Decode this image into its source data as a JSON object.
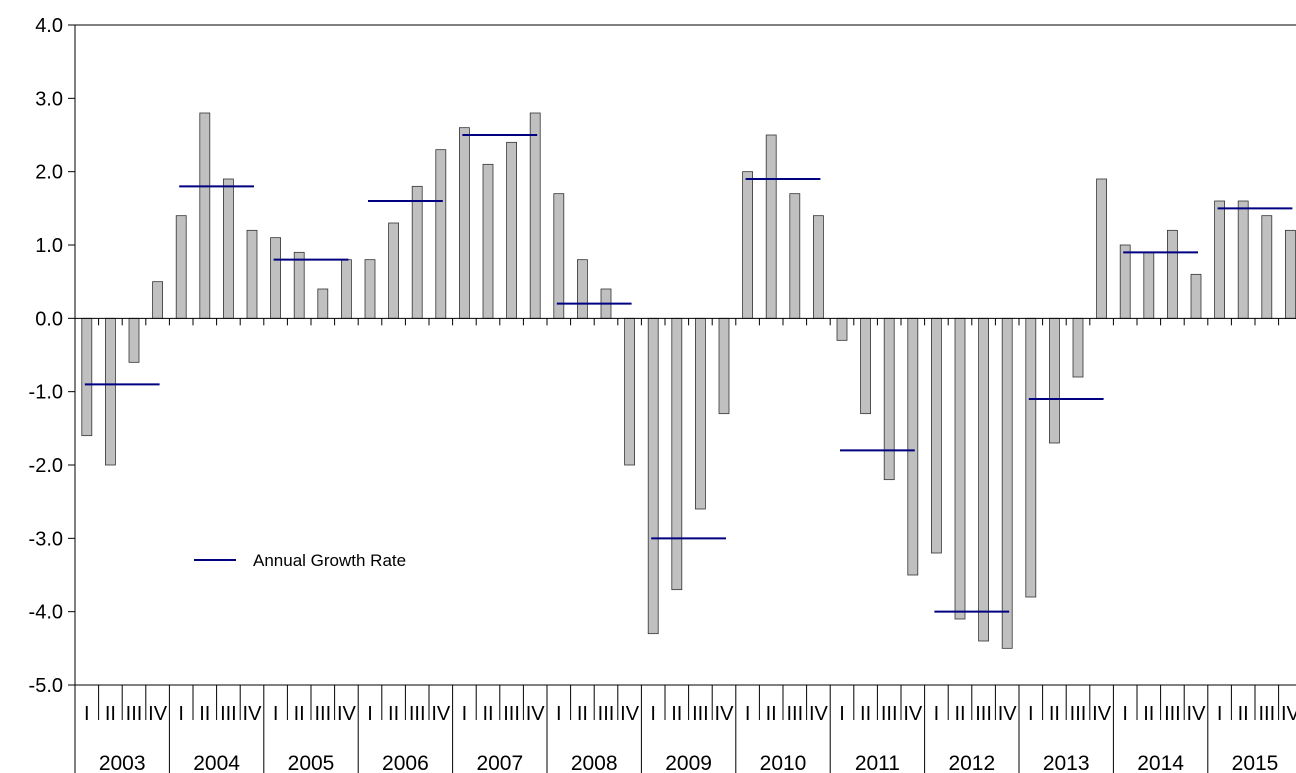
{
  "chart_data": {
    "type": "bar",
    "title": "",
    "xlabel": "",
    "ylabel": "",
    "ylim": [
      -5.0,
      4.0
    ],
    "yticks": [
      "-5.0",
      "-4.0",
      "-3.0",
      "-2.0",
      "-1.0",
      "0.0",
      "1.0",
      "2.0",
      "3.0",
      "4.0"
    ],
    "grid": false,
    "quarter_labels": [
      "I",
      "II",
      "III",
      "IV"
    ],
    "years": [
      "2003",
      "2004",
      "2005",
      "2006",
      "2007",
      "2008",
      "2009",
      "2010",
      "2011",
      "2012",
      "2013",
      "2014",
      "2015"
    ],
    "series": [
      {
        "type": "bar",
        "color": "#c0c0c0",
        "values": [
          -1.6,
          -2.0,
          -0.6,
          0.5,
          1.4,
          2.8,
          1.9,
          1.2,
          1.1,
          0.9,
          0.4,
          0.8,
          0.8,
          1.3,
          1.8,
          2.3,
          2.6,
          2.1,
          2.4,
          2.8,
          1.7,
          0.8,
          0.4,
          -2.0,
          -4.3,
          -3.7,
          -2.6,
          -1.3,
          2.0,
          2.5,
          1.7,
          1.4,
          -0.3,
          -1.3,
          -2.2,
          -3.5,
          -3.2,
          -4.1,
          -4.4,
          -4.5,
          -3.8,
          -1.7,
          -0.8,
          1.9,
          1.0,
          0.9,
          1.2,
          0.6,
          1.6,
          1.6,
          1.4,
          1.2
        ]
      },
      {
        "name": "Annual Growth Rate",
        "type": "line-segment",
        "color": "#000080",
        "values": [
          -0.9,
          1.8,
          0.8,
          1.6,
          2.5,
          0.2,
          -3.0,
          1.9,
          -1.8,
          -4.0,
          -1.1,
          0.9,
          1.5
        ]
      }
    ],
    "legend": {
      "position": "lower-left",
      "label": "Annual Growth Rate"
    }
  }
}
